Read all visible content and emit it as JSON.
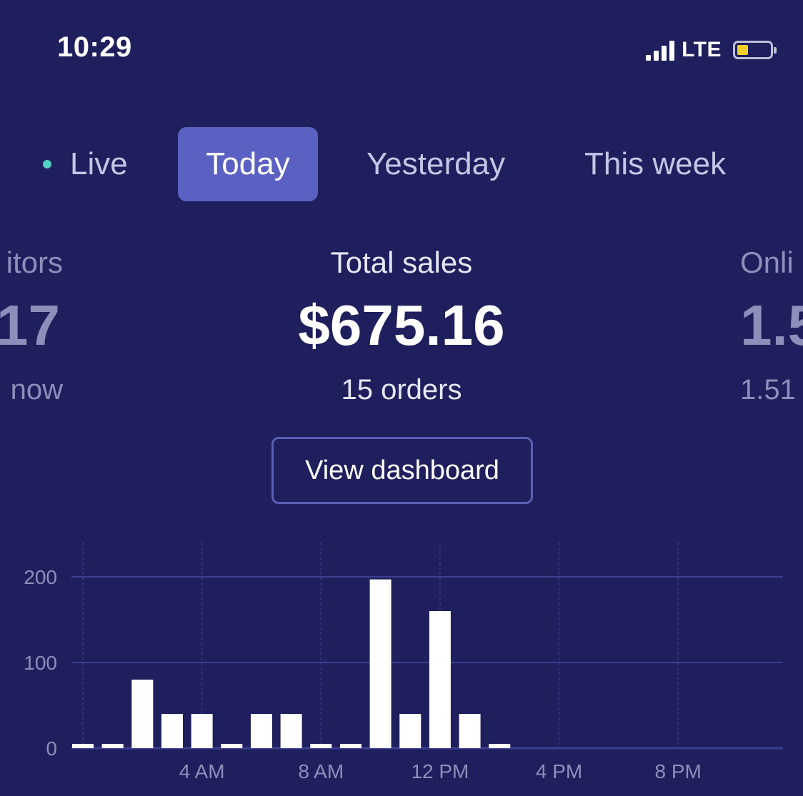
{
  "status_bar": {
    "time": "10:29",
    "network": "LTE",
    "battery_level": 0.35,
    "battery_color": "#f3cf2a"
  },
  "tabs": [
    {
      "label": "Live",
      "active": false
    },
    {
      "label": "Today",
      "active": true
    },
    {
      "label": "Yesterday",
      "active": false
    },
    {
      "label": "This week",
      "active": false
    }
  ],
  "stats": {
    "left": {
      "label": "itors",
      "value": "17",
      "sub": "now"
    },
    "center": {
      "label": "Total sales",
      "value": "$675.16",
      "sub": "15 orders"
    },
    "right": {
      "label": "Onli",
      "value": "1.5",
      "sub": "1.51"
    }
  },
  "actions": {
    "view_dashboard": "View dashboard"
  },
  "colors": {
    "background": "#1e1f5c",
    "accent": "#5b61c2",
    "live_dot": "#52d2c4",
    "bar": "#ffffff",
    "grid": "#3b3f8f",
    "muted_text": "#8d8fba"
  },
  "chart_data": {
    "type": "bar",
    "title": "",
    "xlabel": "",
    "ylabel": "",
    "ylim": [
      0,
      200
    ],
    "yticks": [
      0,
      100,
      200
    ],
    "xtick_labels": [
      {
        "hour": 4,
        "label": "4 AM"
      },
      {
        "hour": 8,
        "label": "8 AM"
      },
      {
        "hour": 12,
        "label": "12 PM"
      },
      {
        "hour": 16,
        "label": "4 PM"
      },
      {
        "hour": 20,
        "label": "8 PM"
      }
    ],
    "hours": [
      0,
      1,
      2,
      3,
      4,
      5,
      6,
      7,
      8,
      9,
      10,
      11,
      12,
      13,
      14,
      15,
      16,
      17,
      18,
      19,
      20,
      21,
      22,
      23
    ],
    "values": [
      0,
      0,
      80,
      40,
      40,
      0,
      40,
      40,
      0,
      0,
      197,
      40,
      160,
      40,
      0,
      null,
      null,
      null,
      null,
      null,
      null,
      null,
      null,
      null
    ],
    "grid": true
  }
}
